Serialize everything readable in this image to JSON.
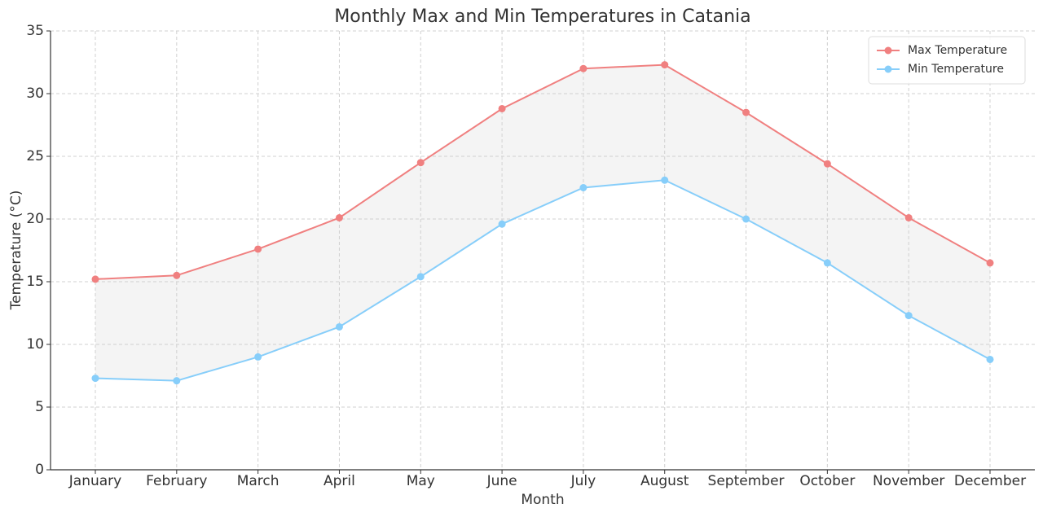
{
  "chart_data": {
    "type": "line",
    "title": "Monthly Max and Min Temperatures in Catania",
    "xlabel": "Month",
    "ylabel": "Temperature (°C)",
    "categories": [
      "January",
      "February",
      "March",
      "April",
      "May",
      "June",
      "July",
      "August",
      "September",
      "October",
      "November",
      "December"
    ],
    "series": [
      {
        "name": "Max Temperature",
        "color": "#f08080",
        "values": [
          15.2,
          15.5,
          17.6,
          20.1,
          24.5,
          28.8,
          32.0,
          32.3,
          28.5,
          24.4,
          20.1,
          16.5
        ]
      },
      {
        "name": "Min Temperature",
        "color": "#87cefa",
        "values": [
          7.3,
          7.1,
          9.0,
          11.4,
          15.4,
          19.6,
          22.5,
          23.1,
          20.0,
          16.5,
          12.3,
          8.8
        ]
      }
    ],
    "fill_between_color": "#d3d3d3",
    "ylim": [
      0,
      35
    ],
    "yticks": [
      0,
      5,
      10,
      15,
      20,
      25,
      30,
      35
    ],
    "grid": true,
    "legend": "upper right"
  }
}
